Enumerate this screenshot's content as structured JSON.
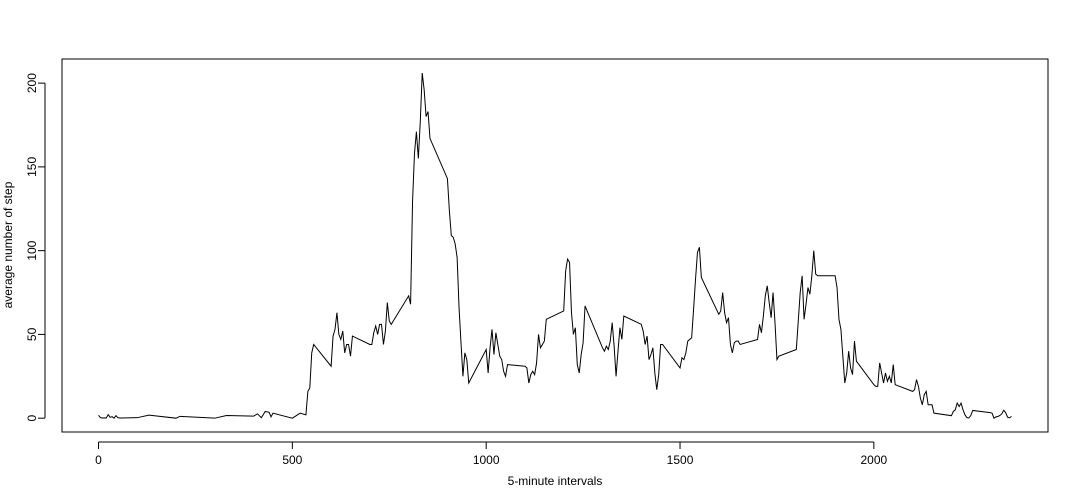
{
  "chart_data": {
    "type": "line",
    "xlabel": "5-minute intervals",
    "ylabel": "average number of step",
    "color": "#000000",
    "xlim": [
      -94.2,
      2449.2
    ],
    "ylim": [
      -8.25,
      214.4
    ],
    "xticks": [
      0,
      500,
      1000,
      1500,
      2000
    ],
    "yticks": [
      0,
      50,
      100,
      150,
      200
    ],
    "x": [
      0,
      5,
      10,
      15,
      20,
      25,
      30,
      35,
      40,
      45,
      50,
      55,
      100,
      130,
      200,
      210,
      300,
      330,
      400,
      410,
      420,
      430,
      440,
      445,
      450,
      500,
      520,
      535,
      540,
      545,
      550,
      555,
      600,
      605,
      610,
      615,
      620,
      625,
      630,
      635,
      640,
      645,
      650,
      655,
      700,
      705,
      710,
      715,
      720,
      725,
      730,
      735,
      740,
      745,
      750,
      755,
      800,
      805,
      810,
      815,
      820,
      825,
      830,
      835,
      840,
      845,
      850,
      855,
      900,
      905,
      910,
      915,
      920,
      925,
      930,
      935,
      940,
      945,
      950,
      955,
      1000,
      1005,
      1010,
      1015,
      1020,
      1025,
      1030,
      1035,
      1040,
      1045,
      1050,
      1055,
      1100,
      1105,
      1110,
      1115,
      1120,
      1125,
      1130,
      1135,
      1140,
      1145,
      1150,
      1155,
      1200,
      1205,
      1210,
      1215,
      1220,
      1225,
      1230,
      1235,
      1240,
      1245,
      1250,
      1255,
      1300,
      1305,
      1310,
      1315,
      1320,
      1325,
      1330,
      1335,
      1340,
      1345,
      1350,
      1355,
      1400,
      1405,
      1410,
      1415,
      1420,
      1425,
      1430,
      1435,
      1440,
      1445,
      1450,
      1455,
      1500,
      1505,
      1510,
      1515,
      1520,
      1525,
      1530,
      1535,
      1540,
      1545,
      1550,
      1555,
      1600,
      1605,
      1610,
      1615,
      1620,
      1625,
      1630,
      1635,
      1640,
      1645,
      1650,
      1655,
      1700,
      1705,
      1710,
      1715,
      1720,
      1725,
      1730,
      1735,
      1740,
      1745,
      1750,
      1755,
      1800,
      1805,
      1810,
      1815,
      1820,
      1825,
      1830,
      1835,
      1840,
      1845,
      1850,
      1855,
      1900,
      1905,
      1910,
      1915,
      1920,
      1925,
      1930,
      1935,
      1940,
      1945,
      1950,
      1955,
      2000,
      2005,
      2010,
      2015,
      2020,
      2025,
      2030,
      2035,
      2040,
      2045,
      2050,
      2055,
      2100,
      2105,
      2110,
      2115,
      2120,
      2125,
      2130,
      2135,
      2140,
      2145,
      2150,
      2155,
      2200,
      2205,
      2210,
      2215,
      2220,
      2225,
      2230,
      2235,
      2240,
      2245,
      2250,
      2255,
      2300,
      2305,
      2310,
      2315,
      2320,
      2325,
      2330,
      2335,
      2340,
      2345,
      2350,
      2355
    ],
    "values": [
      1.7,
      0.3,
      0.1,
      0.2,
      0.1,
      2.1,
      0.5,
      0.9,
      0,
      1.5,
      0.3,
      0.1,
      0.3,
      1.8,
      0,
      1.1,
      0,
      1.6,
      1.2,
      2.6,
      0.3,
      4,
      3.5,
      0.8,
      3,
      0,
      3,
      2,
      16,
      18,
      39,
      44,
      31,
      49,
      53,
      63,
      50,
      47,
      52,
      39,
      44,
      44,
      37,
      49,
      44,
      44,
      51,
      55,
      50,
      56,
      56,
      44,
      52,
      69,
      58,
      56,
      73,
      68,
      129,
      158,
      171,
      155,
      177,
      206,
      196,
      180,
      183,
      167,
      143,
      124,
      109,
      108,
      104,
      96,
      66,
      45,
      25,
      39,
      35,
      21,
      41,
      27,
      42,
      53,
      38,
      51,
      44,
      37,
      35,
      28,
      25,
      32,
      31,
      30,
      21,
      26,
      28,
      26,
      33,
      50,
      42,
      44,
      46,
      59,
      64,
      88,
      95,
      93,
      63,
      50,
      54,
      32,
      27,
      38,
      45,
      67,
      42,
      40,
      43,
      41,
      46,
      57,
      43,
      25,
      40,
      54,
      47,
      61,
      56,
      52,
      44,
      49,
      35,
      38,
      42,
      27,
      17,
      26,
      44,
      44,
      30,
      36,
      35,
      39,
      46,
      47,
      48,
      65,
      83,
      99,
      102,
      84,
      62,
      64,
      75,
      63,
      57,
      60,
      44,
      39,
      45,
      46,
      46,
      44,
      47,
      56,
      51,
      61,
      73,
      79,
      69,
      60,
      75,
      57,
      35,
      37,
      41,
      58,
      75,
      85,
      59,
      68,
      78,
      74,
      85,
      100,
      86,
      85,
      85,
      78,
      59,
      53,
      37,
      21,
      27,
      40,
      30,
      26,
      46,
      34,
      20,
      19,
      19,
      33,
      27,
      21,
      27,
      22,
      25,
      21,
      32,
      20,
      16,
      17,
      23,
      19,
      12,
      8,
      14,
      16,
      8,
      8,
      8,
      3,
      1.5,
      4,
      5,
      9,
      7,
      9,
      5,
      2,
      0.3,
      0.1,
      1.6,
      4.6,
      3.3,
      3,
      0,
      0.8,
      1,
      1.6,
      2.6,
      4.7,
      3.3,
      0.6,
      0.2,
      1.1
    ]
  }
}
